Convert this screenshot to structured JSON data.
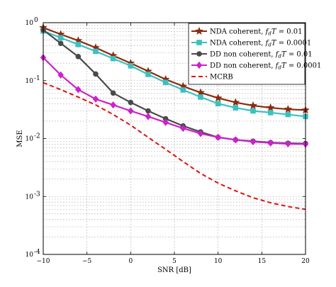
{
  "chart_data": {
    "type": "line",
    "title": "",
    "xlabel": "SNR [dB]",
    "ylabel": "MSE",
    "xlim": [
      -10,
      20
    ],
    "ylim": [
      0.0001,
      1
    ],
    "yscale": "log",
    "grid": true,
    "legend_position": "top-right",
    "x_ticks": [
      -10,
      -5,
      0,
      5,
      10,
      15,
      20
    ],
    "x_tick_labels": [
      "−10",
      "−5",
      "0",
      "5",
      "10",
      "15",
      "20"
    ],
    "y_ticks": [
      0.0001,
      0.001,
      0.01,
      0.1,
      1
    ],
    "y_tick_labels": [
      {
        "base": "10",
        "exp": "-4"
      },
      {
        "base": "10",
        "exp": "-3"
      },
      {
        "base": "10",
        "exp": "-2"
      },
      {
        "base": "10",
        "exp": "-1"
      },
      {
        "base": "10",
        "exp": "0"
      }
    ],
    "series": [
      {
        "name": "NDA coherent, f_dT = 0.01",
        "legend_parts": [
          "NDA coherent, ",
          "f",
          "d",
          "T",
          " = 0.01"
        ],
        "color": "#8b2a0e",
        "marker": "star",
        "dash": "",
        "x": [
          -10,
          -8,
          -6,
          -4,
          -2,
          0,
          2,
          4,
          6,
          8,
          10,
          12,
          14,
          16,
          18,
          20
        ],
        "y": [
          0.82,
          0.63,
          0.49,
          0.37,
          0.27,
          0.2,
          0.145,
          0.105,
          0.08,
          0.062,
          0.05,
          0.042,
          0.037,
          0.034,
          0.032,
          0.031
        ]
      },
      {
        "name": "NDA coherent, f_dT = 0.0001",
        "legend_parts": [
          "NDA coherent, ",
          "f",
          "d",
          "T",
          " = 0.0001"
        ],
        "color": "#3cc0c0",
        "marker": "square",
        "dash": "",
        "x": [
          -10,
          -8,
          -6,
          -4,
          -2,
          0,
          2,
          4,
          6,
          8,
          10,
          12,
          14,
          16,
          18,
          20
        ],
        "y": [
          0.72,
          0.55,
          0.42,
          0.32,
          0.24,
          0.18,
          0.128,
          0.093,
          0.069,
          0.052,
          0.04,
          0.034,
          0.03,
          0.028,
          0.026,
          0.024
        ]
      },
      {
        "name": "DD non coherent, f_dT = 0.01",
        "legend_parts": [
          "DD non coherent, ",
          "f",
          "d",
          "T",
          " = 0.01"
        ],
        "color": "#4a4a4a",
        "marker": "circle",
        "dash": "",
        "x": [
          -10,
          -8,
          -6,
          -4,
          -2,
          0,
          2,
          4,
          6,
          8,
          10,
          12,
          14,
          16,
          18,
          20
        ],
        "y": [
          0.75,
          0.44,
          0.26,
          0.13,
          0.061,
          0.042,
          0.03,
          0.022,
          0.0165,
          0.013,
          0.0105,
          0.0095,
          0.009,
          0.0085,
          0.0083,
          0.0082
        ]
      },
      {
        "name": "DD non coherent, f_dT = 0.0001",
        "legend_parts": [
          "DD non coherent, ",
          "f",
          "d",
          "T",
          " = 0.0001"
        ],
        "color": "#cc22cc",
        "marker": "diamond",
        "dash": "",
        "x": [
          -10,
          -8,
          -6,
          -4,
          -2,
          0,
          2,
          4,
          6,
          8,
          10,
          12,
          14,
          16,
          18,
          20
        ],
        "y": [
          0.25,
          0.125,
          0.07,
          0.048,
          0.038,
          0.03,
          0.024,
          0.019,
          0.015,
          0.0122,
          0.0105,
          0.0095,
          0.0088,
          0.0084,
          0.0081,
          0.008
        ]
      },
      {
        "name": "MCRB",
        "legend_parts": [
          "MCRB"
        ],
        "color": "#e01010",
        "marker": "none",
        "dash": "6,4",
        "x": [
          -10,
          -8,
          -6,
          -4,
          -2,
          0,
          2,
          4,
          6,
          8,
          10,
          12,
          14,
          16,
          18,
          20
        ],
        "y": [
          0.092,
          0.07,
          0.052,
          0.038,
          0.026,
          0.017,
          0.0105,
          0.0065,
          0.004,
          0.0025,
          0.0017,
          0.00125,
          0.00095,
          0.00078,
          0.00067,
          0.0006
        ]
      }
    ]
  }
}
